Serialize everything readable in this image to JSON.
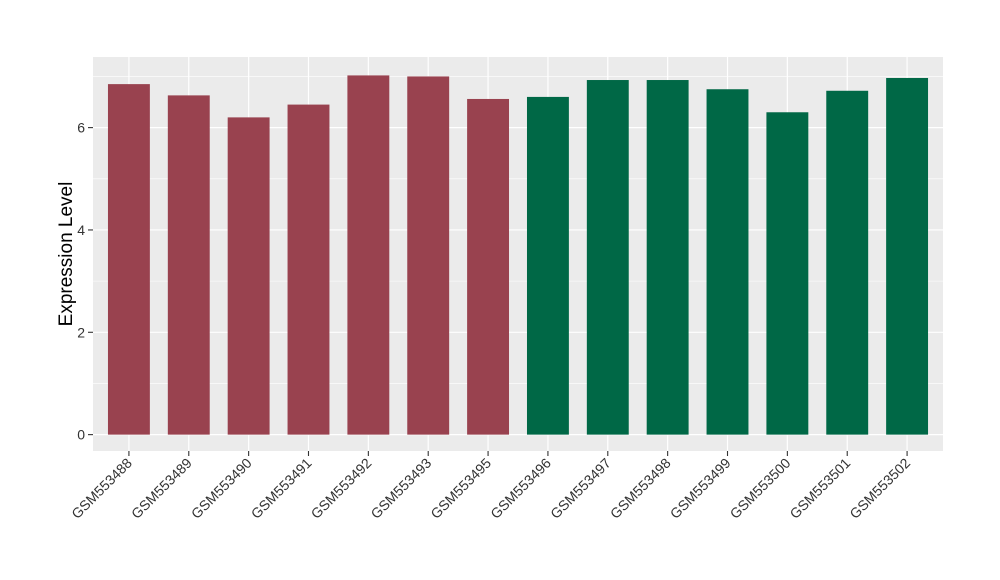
{
  "chart_data": {
    "type": "bar",
    "title": "",
    "xlabel": "",
    "ylabel": "Expression Level",
    "ylim": [
      -0.32,
      7.38
    ],
    "yticks": [
      0,
      2,
      4,
      6
    ],
    "grid": true,
    "legend": "none",
    "categories": [
      "GSM553488",
      "GSM553489",
      "GSM553490",
      "GSM553491",
      "GSM553492",
      "GSM553493",
      "GSM553495",
      "GSM553496",
      "GSM553497",
      "GSM553498",
      "GSM553499",
      "GSM553500",
      "GSM553501",
      "GSM553502"
    ],
    "values": [
      6.85,
      6.63,
      6.2,
      6.45,
      7.02,
      7.0,
      6.56,
      6.6,
      6.93,
      6.93,
      6.75,
      6.3,
      6.72,
      6.97
    ],
    "bar_colors": [
      "#99424f",
      "#99424f",
      "#99424f",
      "#99424f",
      "#99424f",
      "#99424f",
      "#99424f",
      "#006846",
      "#006846",
      "#006846",
      "#006846",
      "#006846",
      "#006846",
      "#006846"
    ],
    "panel_background": "#ebebeb",
    "gridline_color": "#ffffff"
  }
}
